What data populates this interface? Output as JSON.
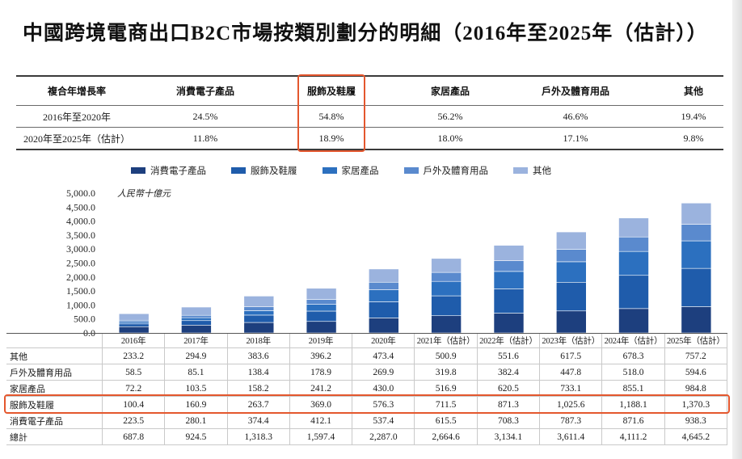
{
  "page_title": "中國跨境電商出口B2C市場按類別劃分的明細（2016年至2025年（估計））",
  "colors": {
    "highlight": "#e4572e",
    "text": "#1a1a1a"
  },
  "cagr_table": {
    "header": [
      "複合年增長率",
      "消費電子產品",
      "服飾及鞋履",
      "家居產品",
      "戶外及體育用品",
      "其他"
    ],
    "rows": [
      [
        "2016年至2020年",
        "24.5%",
        "54.8%",
        "56.2%",
        "46.6%",
        "19.4%"
      ],
      [
        "2020年至2025年（估計）",
        "11.8%",
        "18.9%",
        "18.0%",
        "17.1%",
        "9.8%"
      ]
    ]
  },
  "chart_data": {
    "type": "bar",
    "stacked": true,
    "unit_label": "人民幣十億元",
    "categories": [
      "2016年",
      "2017年",
      "2018年",
      "2019年",
      "2020年",
      "2021年（估計）",
      "2022年（估計）",
      "2023年（估計）",
      "2024年（估計）",
      "2025年（估計）"
    ],
    "ylim": [
      0,
      5000
    ],
    "yticks": [
      0,
      500,
      1000,
      1500,
      2000,
      2500,
      3000,
      3500,
      4000,
      4500,
      5000
    ],
    "ytick_labels": [
      "0.0",
      "500.0",
      "1,000.0",
      "1,500.0",
      "2,000.0",
      "2,500.0",
      "3,000.0",
      "3,500.0",
      "4,000.0",
      "4,500.0",
      "5,000.0"
    ],
    "grid": false,
    "legend_position": "top",
    "series": [
      {
        "name": "消費電子產品",
        "color": "#1d3f7e",
        "values": [
          223.5,
          280.1,
          374.4,
          412.1,
          537.4,
          615.5,
          708.3,
          787.3,
          871.6,
          938.3
        ]
      },
      {
        "name": "服飾及鞋履",
        "color": "#1f5cab",
        "values": [
          100.4,
          160.9,
          263.7,
          369.0,
          576.3,
          711.5,
          871.3,
          1025.6,
          1188.1,
          1370.3
        ]
      },
      {
        "name": "家居產品",
        "color": "#2c70bf",
        "values": [
          72.2,
          103.5,
          158.2,
          241.2,
          430.0,
          516.9,
          620.5,
          733.1,
          855.1,
          984.8
        ]
      },
      {
        "name": "戶外及體育用品",
        "color": "#5a8ace",
        "values": [
          58.5,
          85.1,
          138.4,
          178.9,
          269.9,
          319.8,
          382.4,
          447.8,
          518.0,
          594.6
        ]
      },
      {
        "name": "其他",
        "color": "#9bb3de",
        "values": [
          233.2,
          294.9,
          383.6,
          396.2,
          473.4,
          500.9,
          551.6,
          617.5,
          678.3,
          757.2
        ]
      }
    ]
  },
  "data_table": {
    "rows": [
      {
        "label": "其他",
        "values": [
          "233.2",
          "294.9",
          "383.6",
          "396.2",
          "473.4",
          "500.9",
          "551.6",
          "617.5",
          "678.3",
          "757.2"
        ]
      },
      {
        "label": "戶外及體育用品",
        "values": [
          "58.5",
          "85.1",
          "138.4",
          "178.9",
          "269.9",
          "319.8",
          "382.4",
          "447.8",
          "518.0",
          "594.6"
        ]
      },
      {
        "label": "家居產品",
        "values": [
          "72.2",
          "103.5",
          "158.2",
          "241.2",
          "430.0",
          "516.9",
          "620.5",
          "733.1",
          "855.1",
          "984.8"
        ]
      },
      {
        "label": "服飾及鞋履",
        "values": [
          "100.4",
          "160.9",
          "263.7",
          "369.0",
          "576.3",
          "711.5",
          "871.3",
          "1,025.6",
          "1,188.1",
          "1,370.3"
        ]
      },
      {
        "label": "消費電子產品",
        "values": [
          "223.5",
          "280.1",
          "374.4",
          "412.1",
          "537.4",
          "615.5",
          "708.3",
          "787.3",
          "871.6",
          "938.3"
        ]
      },
      {
        "label": "總計",
        "values": [
          "687.8",
          "924.5",
          "1,318.3",
          "1,597.4",
          "2,287.0",
          "2,664.6",
          "3,134.1",
          "3,611.4",
          "4,111.2",
          "4,645.2"
        ]
      }
    ]
  }
}
